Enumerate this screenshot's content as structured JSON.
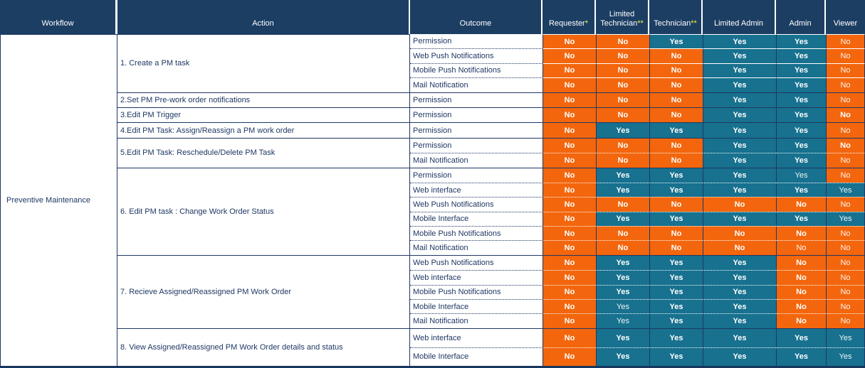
{
  "workflow": "Preventive Maintenance",
  "colors": {
    "header_navy": "#1c3e63",
    "border_navy": "#1f3864",
    "no_orange": "#f3660d",
    "yes_teal": "#17718f",
    "asterisk_yellow": "#f5f23d"
  },
  "columns": [
    {
      "label": "Workflow",
      "mark": ""
    },
    {
      "label": "Action",
      "mark": ""
    },
    {
      "label": "Outcome",
      "mark": ""
    },
    {
      "label": "Requester",
      "mark": "*"
    },
    {
      "label": "Limited Technician",
      "mark": "**"
    },
    {
      "label": "Technician",
      "mark": "**"
    },
    {
      "label": "Limited Admin",
      "mark": ""
    },
    {
      "label": "Admin",
      "mark": ""
    },
    {
      "label": "Viewer",
      "mark": ""
    }
  ],
  "role_keys": [
    "requester",
    "limited-technician",
    "technician",
    "limited-admin",
    "admin",
    "viewer"
  ],
  "groups": [
    {
      "action": "1. Create  a PM task",
      "rows": [
        {
          "outcome": "Permission",
          "cells": [
            {
              "v": "No",
              "b": 1
            },
            {
              "v": "No",
              "b": 1
            },
            {
              "v": "Yes",
              "b": 1
            },
            {
              "v": "Yes",
              "b": 1
            },
            {
              "v": "Yes",
              "b": 1
            },
            {
              "v": "No",
              "b": 0
            }
          ]
        },
        {
          "outcome": "Web Push Notifications",
          "cells": [
            {
              "v": "No",
              "b": 1
            },
            {
              "v": "No",
              "b": 1
            },
            {
              "v": "No",
              "b": 1
            },
            {
              "v": "Yes",
              "b": 1
            },
            {
              "v": "Yes",
              "b": 1
            },
            {
              "v": "No",
              "b": 0
            }
          ]
        },
        {
          "outcome": "Mobile Push Notifications",
          "cells": [
            {
              "v": "No",
              "b": 1
            },
            {
              "v": "No",
              "b": 1
            },
            {
              "v": "No",
              "b": 1
            },
            {
              "v": "Yes",
              "b": 1
            },
            {
              "v": "Yes",
              "b": 1
            },
            {
              "v": "No",
              "b": 0
            }
          ]
        },
        {
          "outcome": "Mail Notification",
          "cells": [
            {
              "v": "No",
              "b": 1
            },
            {
              "v": "No",
              "b": 1
            },
            {
              "v": "No",
              "b": 1
            },
            {
              "v": "Yes",
              "b": 1
            },
            {
              "v": "Yes",
              "b": 1
            },
            {
              "v": "No",
              "b": 0
            }
          ]
        }
      ]
    },
    {
      "action": "2.Set PM Pre-work order notifications",
      "rows": [
        {
          "outcome": "Permission",
          "cells": [
            {
              "v": "No",
              "b": 1
            },
            {
              "v": "No",
              "b": 1
            },
            {
              "v": "No",
              "b": 1
            },
            {
              "v": "Yes",
              "b": 1
            },
            {
              "v": "Yes",
              "b": 1
            },
            {
              "v": "No",
              "b": 0
            }
          ]
        }
      ]
    },
    {
      "action": "3.Edit PM Trigger",
      "rows": [
        {
          "outcome": "Permission",
          "cells": [
            {
              "v": "No",
              "b": 1
            },
            {
              "v": "No",
              "b": 1
            },
            {
              "v": "No",
              "b": 1
            },
            {
              "v": "Yes",
              "b": 1
            },
            {
              "v": "Yes",
              "b": 1
            },
            {
              "v": "No",
              "b": 1
            }
          ]
        }
      ]
    },
    {
      "action": "4.Edit PM Task: Assign/Reassign a PM work order",
      "rows": [
        {
          "outcome": "Permission",
          "cells": [
            {
              "v": "No",
              "b": 1
            },
            {
              "v": "Yes",
              "b": 1
            },
            {
              "v": "Yes",
              "b": 1
            },
            {
              "v": "Yes",
              "b": 1
            },
            {
              "v": "Yes",
              "b": 1
            },
            {
              "v": "No",
              "b": 0
            }
          ]
        }
      ]
    },
    {
      "action": "5.Edit PM Task:  Reschedule/Delete PM Task",
      "rows": [
        {
          "outcome": "Permission",
          "cells": [
            {
              "v": "No",
              "b": 1
            },
            {
              "v": "No",
              "b": 1
            },
            {
              "v": "No",
              "b": 1
            },
            {
              "v": "Yes",
              "b": 1
            },
            {
              "v": "Yes",
              "b": 1
            },
            {
              "v": "No",
              "b": 1
            }
          ]
        },
        {
          "outcome": "Mail Notification",
          "cells": [
            {
              "v": "No",
              "b": 1
            },
            {
              "v": "No",
              "b": 1
            },
            {
              "v": "No",
              "b": 1
            },
            {
              "v": "Yes",
              "b": 1
            },
            {
              "v": "Yes",
              "b": 1
            },
            {
              "v": "No",
              "b": 0
            }
          ]
        }
      ]
    },
    {
      "action": "6. Edit PM task : Change Work Order Status",
      "rows": [
        {
          "outcome": "Permission",
          "cells": [
            {
              "v": "No",
              "b": 1
            },
            {
              "v": "Yes",
              "b": 1
            },
            {
              "v": "Yes",
              "b": 1
            },
            {
              "v": "Yes",
              "b": 1
            },
            {
              "v": "Yes",
              "b": 0
            },
            {
              "v": "No",
              "b": 0
            }
          ]
        },
        {
          "outcome": "Web interface",
          "cells": [
            {
              "v": "No",
              "b": 1
            },
            {
              "v": "Yes",
              "b": 1
            },
            {
              "v": "Yes",
              "b": 1
            },
            {
              "v": "Yes",
              "b": 1
            },
            {
              "v": "Yes",
              "b": 1
            },
            {
              "v": "Yes",
              "b": 0
            }
          ]
        },
        {
          "outcome": "Web Push Notifications",
          "cells": [
            {
              "v": "No",
              "b": 1
            },
            {
              "v": "No",
              "b": 1
            },
            {
              "v": "No",
              "b": 1
            },
            {
              "v": "No",
              "b": 1
            },
            {
              "v": "No",
              "b": 1
            },
            {
              "v": "No",
              "b": 0
            }
          ]
        },
        {
          "outcome": "Mobile Interface",
          "cells": [
            {
              "v": "No",
              "b": 1
            },
            {
              "v": "Yes",
              "b": 1
            },
            {
              "v": "Yes",
              "b": 1
            },
            {
              "v": "Yes",
              "b": 1
            },
            {
              "v": "Yes",
              "b": 1
            },
            {
              "v": "Yes",
              "b": 0
            }
          ]
        },
        {
          "outcome": "Mobile Push Notifications",
          "cells": [
            {
              "v": "No",
              "b": 1
            },
            {
              "v": "No",
              "b": 1
            },
            {
              "v": "No",
              "b": 1
            },
            {
              "v": "No",
              "b": 1
            },
            {
              "v": "No",
              "b": 1
            },
            {
              "v": "No",
              "b": 0
            }
          ]
        },
        {
          "outcome": "Mail Notification",
          "cells": [
            {
              "v": "No",
              "b": 1
            },
            {
              "v": "No",
              "b": 1
            },
            {
              "v": "No",
              "b": 1
            },
            {
              "v": "No",
              "b": 1
            },
            {
              "v": "No",
              "b": 0
            },
            {
              "v": "No",
              "b": 0
            }
          ]
        }
      ]
    },
    {
      "action": "7. Recieve Assigned/Reassigned PM Work Order",
      "rows": [
        {
          "outcome": "Web Push Notifications",
          "cells": [
            {
              "v": "No",
              "b": 1
            },
            {
              "v": "Yes",
              "b": 1
            },
            {
              "v": "Yes",
              "b": 1
            },
            {
              "v": "Yes",
              "b": 1
            },
            {
              "v": "No",
              "b": 1
            },
            {
              "v": "No",
              "b": 0
            }
          ]
        },
        {
          "outcome": "Web interface",
          "cells": [
            {
              "v": "No",
              "b": 1
            },
            {
              "v": "Yes",
              "b": 1
            },
            {
              "v": "Yes",
              "b": 1
            },
            {
              "v": "Yes",
              "b": 1
            },
            {
              "v": "No",
              "b": 1
            },
            {
              "v": "No",
              "b": 0
            }
          ]
        },
        {
          "outcome": "Mobile Push Notifications",
          "cells": [
            {
              "v": "No",
              "b": 1
            },
            {
              "v": "Yes",
              "b": 1
            },
            {
              "v": "Yes",
              "b": 1
            },
            {
              "v": "Yes",
              "b": 1
            },
            {
              "v": "No",
              "b": 1
            },
            {
              "v": "No",
              "b": 0
            }
          ]
        },
        {
          "outcome": "Mobile Interface",
          "cells": [
            {
              "v": "No",
              "b": 1
            },
            {
              "v": "Yes",
              "b": 0
            },
            {
              "v": "Yes",
              "b": 1
            },
            {
              "v": "Yes",
              "b": 1
            },
            {
              "v": "No",
              "b": 1
            },
            {
              "v": "No",
              "b": 0
            }
          ]
        },
        {
          "outcome": "Mail Notification",
          "cells": [
            {
              "v": "No",
              "b": 1
            },
            {
              "v": "Yes",
              "b": 0
            },
            {
              "v": "Yes",
              "b": 1
            },
            {
              "v": "Yes",
              "b": 1
            },
            {
              "v": "No",
              "b": 1
            },
            {
              "v": "No",
              "b": 0
            }
          ]
        }
      ]
    },
    {
      "action": "8. View Assigned/Reassigned PM Work Order details and status",
      "rows": [
        {
          "outcome": "Web interface",
          "cells": [
            {
              "v": "No",
              "b": 1
            },
            {
              "v": "Yes",
              "b": 1
            },
            {
              "v": "Yes",
              "b": 1
            },
            {
              "v": "Yes",
              "b": 1
            },
            {
              "v": "Yes",
              "b": 1
            },
            {
              "v": "Yes",
              "b": 0
            }
          ]
        },
        {
          "outcome": "Mobile Interface",
          "cells": [
            {
              "v": "No",
              "b": 1
            },
            {
              "v": "Yes",
              "b": 1
            },
            {
              "v": "Yes",
              "b": 1
            },
            {
              "v": "Yes",
              "b": 1
            },
            {
              "v": "Yes",
              "b": 1
            },
            {
              "v": "Yes",
              "b": 0
            }
          ]
        }
      ]
    }
  ]
}
